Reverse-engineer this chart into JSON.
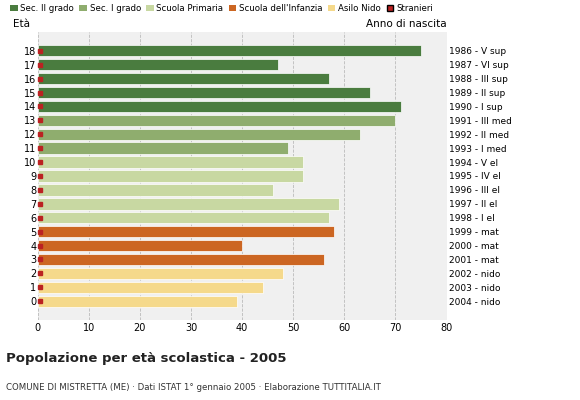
{
  "ages": [
    18,
    17,
    16,
    15,
    14,
    13,
    12,
    11,
    10,
    9,
    8,
    7,
    6,
    5,
    4,
    3,
    2,
    1,
    0
  ],
  "values": [
    75,
    47,
    57,
    65,
    71,
    70,
    63,
    49,
    52,
    52,
    46,
    59,
    57,
    58,
    40,
    56,
    48,
    44,
    39
  ],
  "bar_colors": [
    "#4a7c3f",
    "#4a7c3f",
    "#4a7c3f",
    "#4a7c3f",
    "#4a7c3f",
    "#8fad6e",
    "#8fad6e",
    "#8fad6e",
    "#c8d8a2",
    "#c8d8a2",
    "#c8d8a2",
    "#c8d8a2",
    "#c8d8a2",
    "#cc6622",
    "#cc6622",
    "#cc6622",
    "#f5d98b",
    "#f5d98b",
    "#f5d98b"
  ],
  "right_labels": [
    "1986 - V sup",
    "1987 - VI sup",
    "1988 - III sup",
    "1989 - II sup",
    "1990 - I sup",
    "1991 - III med",
    "1992 - II med",
    "1993 - I med",
    "1994 - V el",
    "1995 - IV el",
    "1996 - III el",
    "1997 - II el",
    "1998 - I el",
    "1999 - mat",
    "2000 - mat",
    "2001 - mat",
    "2002 - nido",
    "2003 - nido",
    "2004 - nido"
  ],
  "stranieri_color": "#bb2222",
  "legend_labels": [
    "Sec. II grado",
    "Sec. I grado",
    "Scuola Primaria",
    "Scuola dell'Infanzia",
    "Asilo Nido",
    "Stranieri"
  ],
  "legend_colors": [
    "#4a7c3f",
    "#8fad6e",
    "#c8d8a2",
    "#cc6622",
    "#f5d98b",
    "#bb2222"
  ],
  "label_eta": "Età",
  "label_anno": "Anno di nascita",
  "title": "Popolazione per età scolastica - 2005",
  "subtitle": "COMUNE DI MISTRETTA (ME) · Dati ISTAT 1° gennaio 2005 · Elaborazione TUTTITALIA.IT",
  "xlim": [
    0,
    80
  ],
  "xticks": [
    0,
    10,
    20,
    30,
    40,
    50,
    60,
    70,
    80
  ],
  "grid_color": "#bbbbbb",
  "bg_color": "#ffffff",
  "bar_bg_color": "#f0f0f0"
}
